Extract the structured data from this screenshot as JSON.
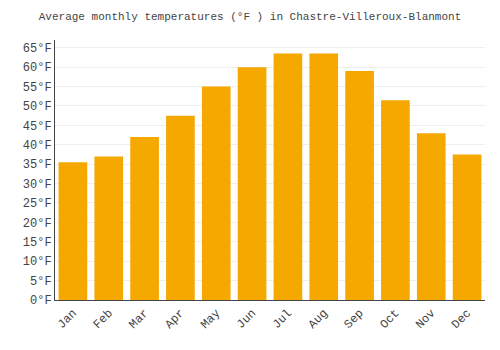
{
  "chart_data": {
    "type": "bar",
    "title": "Average monthly temperatures (°F ) in Chastre-Villeroux-Blanmont",
    "categories": [
      "Jan",
      "Feb",
      "Mar",
      "Apr",
      "May",
      "Jun",
      "Jul",
      "Aug",
      "Sep",
      "Oct",
      "Nov",
      "Dec"
    ],
    "values": [
      35.5,
      37,
      42,
      47.5,
      55,
      60,
      63.5,
      63.5,
      59,
      51.5,
      43,
      37.5
    ],
    "color": "#F5A800",
    "ylim": [
      0,
      67
    ],
    "yticks": [
      {
        "value": 0,
        "label": "0°F"
      },
      {
        "value": 5,
        "label": "5°F"
      },
      {
        "value": 10,
        "label": "10°F"
      },
      {
        "value": 15,
        "label": "15°F"
      },
      {
        "value": 20,
        "label": "20°F"
      },
      {
        "value": 25,
        "label": "25°F"
      },
      {
        "value": 30,
        "label": "30°F"
      },
      {
        "value": 35,
        "label": "35°F"
      },
      {
        "value": 40,
        "label": "40°F"
      },
      {
        "value": 45,
        "label": "45°F"
      },
      {
        "value": 50,
        "label": "50°F"
      },
      {
        "value": 55,
        "label": "55°F"
      },
      {
        "value": 60,
        "label": "60°F"
      },
      {
        "value": 65,
        "label": "65°F"
      }
    ],
    "grid": true
  }
}
